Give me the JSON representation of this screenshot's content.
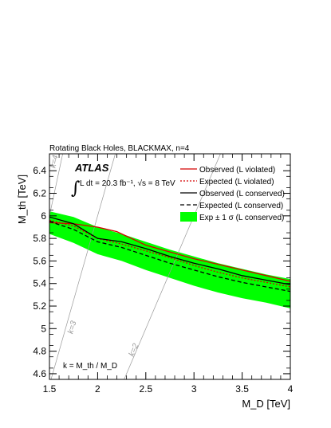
{
  "chart_data": {
    "type": "line",
    "title": "Rotating Black Holes, BLACKMAX, n=4",
    "xlabel": "M_D [TeV]",
    "ylabel": "M_th [TeV]",
    "xlim": [
      1.5,
      4.0
    ],
    "ylim": [
      4.55,
      6.55
    ],
    "x_ticks": [
      "1.5",
      "2",
      "2.5",
      "3",
      "3.5",
      "4"
    ],
    "y_ticks": [
      "4.6",
      "4.8",
      "5",
      "5.2",
      "5.4",
      "5.6",
      "5.8",
      "6",
      "6.2",
      "6.4"
    ],
    "grid": false,
    "legend_position": "top-right",
    "atlas_label": "ATLAS",
    "lumi_text": "L dt = 20.3 fb⁻¹, √s = 8 TeV",
    "k_definition": "k = M_th / M_D",
    "band": {
      "name": "Exp ± 1 σ (L conserved)",
      "color": "#00ff00",
      "x": [
        1.5,
        1.75,
        2.0,
        2.25,
        2.5,
        2.75,
        3.0,
        3.25,
        3.5,
        3.75,
        4.0
      ],
      "upper": [
        6.04,
        5.99,
        5.9,
        5.84,
        5.77,
        5.7,
        5.64,
        5.58,
        5.53,
        5.48,
        5.44
      ],
      "lower": [
        5.84,
        5.76,
        5.66,
        5.6,
        5.52,
        5.45,
        5.38,
        5.32,
        5.27,
        5.23,
        5.18
      ]
    },
    "series": [
      {
        "name": "Observed (L violated)",
        "color": "#d40000",
        "dash": "solid",
        "x": [
          1.5,
          1.75,
          2.0,
          2.2,
          2.5,
          2.75,
          3.0,
          3.25,
          3.5,
          3.75,
          4.0
        ],
        "values": [
          5.94,
          5.93,
          5.9,
          5.86,
          5.74,
          5.68,
          5.62,
          5.57,
          5.52,
          5.47,
          5.42
        ]
      },
      {
        "name": "Expected (L violated)",
        "color": "#d40000",
        "dash": "dotted",
        "x": [
          1.5,
          1.75,
          2.0,
          2.25,
          2.5,
          2.75,
          3.0,
          3.25,
          3.5,
          3.75,
          4.0
        ],
        "values": [
          5.96,
          5.91,
          5.8,
          5.75,
          5.69,
          5.63,
          5.56,
          5.5,
          5.45,
          5.41,
          5.37
        ]
      },
      {
        "name": "Observed (L conserved)",
        "color": "#000000",
        "dash": "solid",
        "x": [
          1.5,
          1.75,
          2.0,
          2.25,
          2.5,
          2.75,
          3.0,
          3.25,
          3.5,
          3.75,
          4.0
        ],
        "values": [
          5.99,
          5.93,
          5.8,
          5.77,
          5.71,
          5.64,
          5.58,
          5.53,
          5.47,
          5.43,
          5.39
        ]
      },
      {
        "name": "Expected (L conserved)",
        "color": "#000000",
        "dash": "dashed",
        "x": [
          1.5,
          1.75,
          2.0,
          2.25,
          2.5,
          2.75,
          3.0,
          3.25,
          3.5,
          3.75,
          4.0
        ],
        "values": [
          5.95,
          5.88,
          5.77,
          5.72,
          5.65,
          5.58,
          5.52,
          5.46,
          5.41,
          5.37,
          5.33
        ]
      }
    ],
    "k_lines": [
      {
        "k": 4,
        "label": "k=4"
      },
      {
        "k": 3,
        "label": "k=3"
      },
      {
        "k": 2,
        "label": "k=2"
      }
    ]
  }
}
